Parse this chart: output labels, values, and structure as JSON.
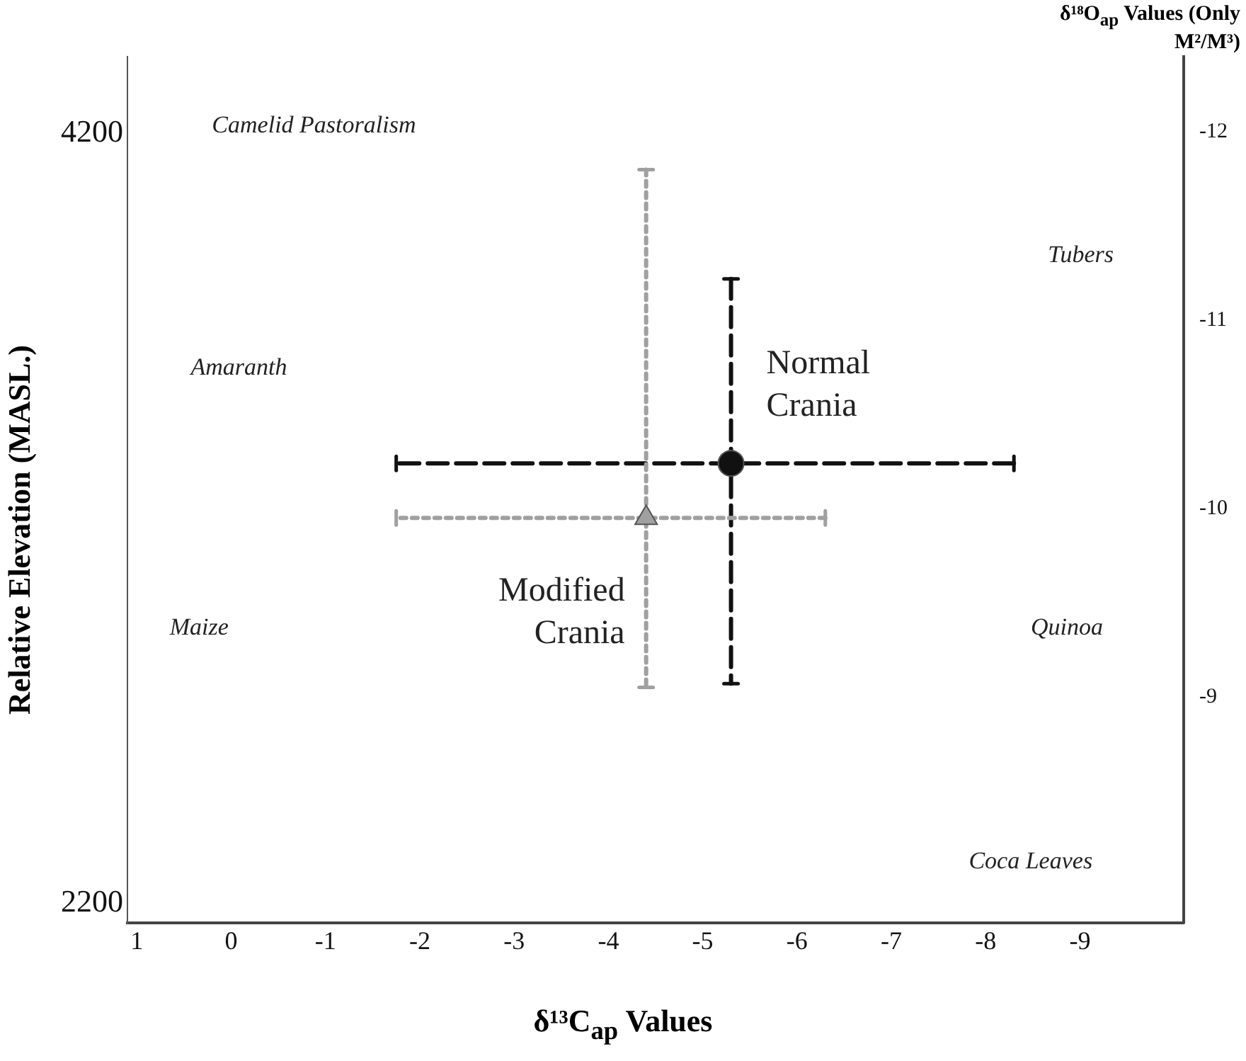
{
  "chart_data": {
    "type": "scatter",
    "xlabel": "δ¹³C$_{ap}$ Values",
    "ylabel": "δ¹⁸O$_{ap}$ Values (Only M²/M³)",
    "y2label": "Relative Elevation (MASL.)",
    "xlim": [
      1.1,
      -10.1
    ],
    "xticks": [
      1,
      0,
      -1,
      -2,
      -3,
      -4,
      -5,
      -6,
      -7,
      -8,
      -9
    ],
    "ylim": [
      -7.8,
      -12.4
    ],
    "yticks": [
      -12,
      -11,
      -10,
      -9
    ],
    "y2lim": [
      2150,
      4400
    ],
    "y2ticks": [
      2200,
      4200
    ],
    "grid": false,
    "legend": false,
    "annotations": [
      "Camelid Pastoralism",
      "Amaranth",
      "Maize",
      "Tubers",
      "Quinoa",
      "Coca Leaves"
    ],
    "series": [
      {
        "name": "Normal Crania",
        "color": "#111111",
        "marker": "circle",
        "x": [
          -5.3
        ],
        "values": [
          -10.24
        ],
        "errors": [
          [
            -11.22,
            -9.07
          ]
        ],
        "xerrors": [
          [
            -8.3,
            -1.75
          ]
        ]
      },
      {
        "name": "Modified Crania",
        "color": "#a0a0a0",
        "marker": "triangle",
        "x": [
          -4.4
        ],
        "values": [
          -9.95
        ],
        "errors": [
          [
            -11.8,
            -9.05
          ]
        ],
        "xerrors": [
          [
            -6.3,
            -1.75
          ]
        ]
      }
    ]
  }
}
